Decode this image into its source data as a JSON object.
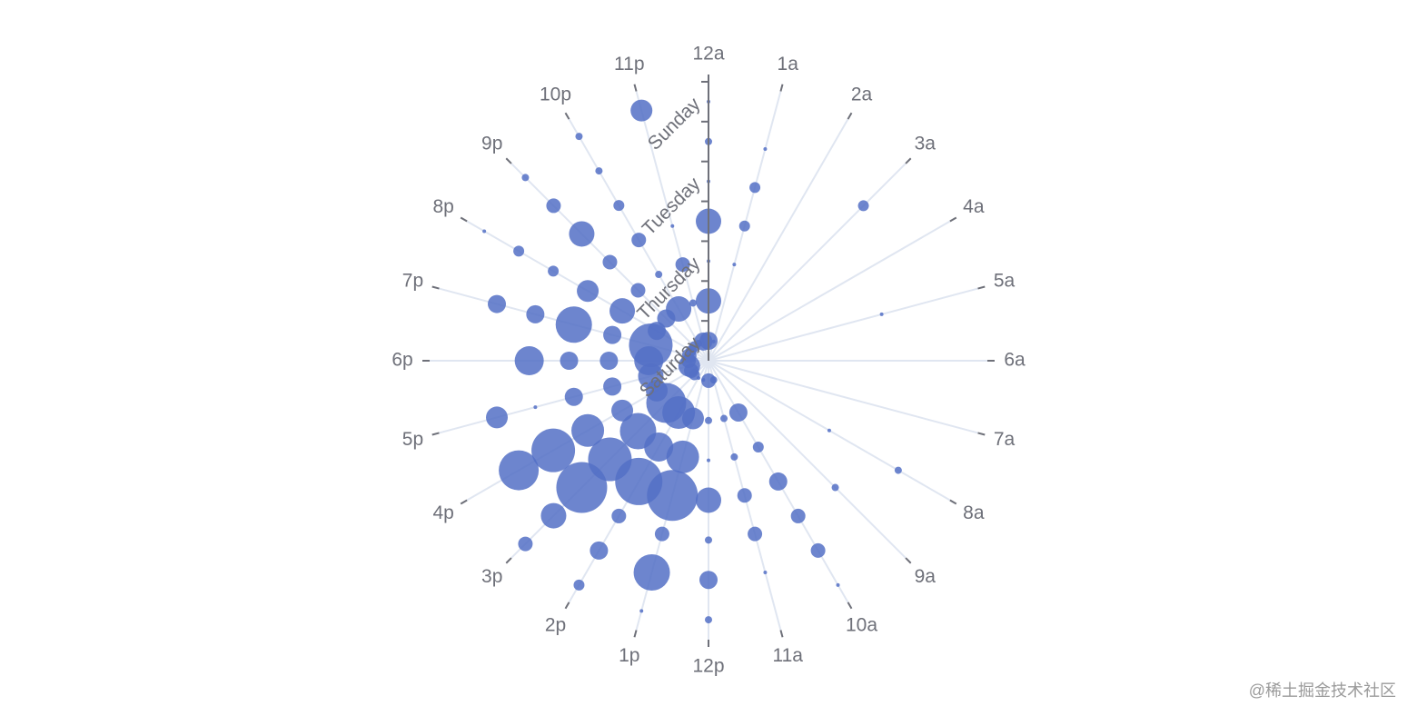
{
  "chart_data": {
    "type": "scatter",
    "coordinate_system": "polar",
    "color": "#5470c6",
    "angle_categories": [
      "12a",
      "1a",
      "2a",
      "3a",
      "4a",
      "5a",
      "6a",
      "7a",
      "8a",
      "9a",
      "10a",
      "11a",
      "12p",
      "1p",
      "2p",
      "3p",
      "4p",
      "5p",
      "6p",
      "7p",
      "8p",
      "9p",
      "10p",
      "11p"
    ],
    "radius_categories": [
      "Saturday",
      null,
      "Thursday",
      null,
      "Tuesday",
      null,
      "Sunday"
    ],
    "values": [
      [
        5,
        1,
        0,
        0,
        0,
        0,
        0,
        0,
        0,
        0,
        0,
        2,
        4,
        1,
        1,
        3,
        4,
        6,
        4,
        4,
        3,
        3,
        2,
        5
      ],
      [
        7,
        0,
        0,
        0,
        0,
        0,
        0,
        0,
        0,
        0,
        5,
        2,
        2,
        6,
        9,
        11,
        6,
        7,
        8,
        12,
        5,
        5,
        7,
        2
      ],
      [
        1,
        1,
        0,
        0,
        0,
        0,
        0,
        0,
        0,
        0,
        3,
        2,
        1,
        9,
        8,
        10,
        6,
        5,
        5,
        5,
        7,
        4,
        2,
        4
      ],
      [
        7,
        3,
        0,
        0,
        0,
        0,
        0,
        0,
        1,
        0,
        5,
        4,
        7,
        14,
        13,
        12,
        9,
        5,
        5,
        10,
        6,
        4,
        4,
        1
      ],
      [
        1,
        3,
        0,
        0,
        0,
        1,
        0,
        0,
        0,
        2,
        4,
        4,
        2,
        4,
        4,
        14,
        12,
        1,
        8,
        5,
        3,
        7,
        3,
        0
      ],
      [
        2,
        1,
        0,
        3,
        0,
        0,
        0,
        0,
        2,
        0,
        4,
        1,
        5,
        10,
        5,
        7,
        11,
        6,
        0,
        5,
        3,
        4,
        2,
        0
      ],
      [
        1,
        0,
        0,
        0,
        0,
        0,
        0,
        0,
        0,
        0,
        1,
        0,
        2,
        1,
        3,
        4,
        0,
        0,
        0,
        0,
        1,
        2,
        2,
        6
      ]
    ]
  },
  "watermark": "@稀土掘金技术社区"
}
